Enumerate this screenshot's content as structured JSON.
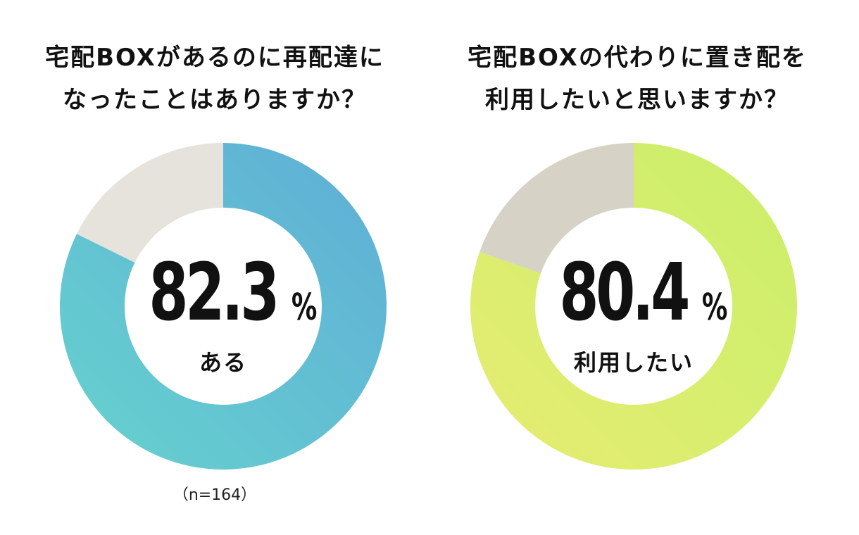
{
  "chart_data": [
    {
      "type": "pie",
      "title_lines": [
        "宅配BOXがあるのに再配達に",
        "なったことはありますか？"
      ],
      "center_value": "82.3",
      "center_unit": "%",
      "center_label": "ある",
      "sample_note": "（n=164）",
      "slices": [
        {
          "label": "ある",
          "value": 82.3
        },
        {
          "label": "",
          "value": 17.7
        }
      ],
      "colors": {
        "main_start": "#5fadd6",
        "main_end": "#66d2cf",
        "rest": "#e6e3dd"
      }
    },
    {
      "type": "pie",
      "title_lines": [
        "宅配BOXの代わりに置き配を",
        "利用したいと思いますか？"
      ],
      "center_value": "80.4",
      "center_unit": "%",
      "center_label": "利用したい",
      "slices": [
        {
          "label": "利用したい",
          "value": 80.4
        },
        {
          "label": "",
          "value": 19.6
        }
      ],
      "colors": {
        "main_start": "#c9ef6a",
        "main_end": "#e6ec72",
        "rest": "#d6d2c5"
      }
    }
  ]
}
